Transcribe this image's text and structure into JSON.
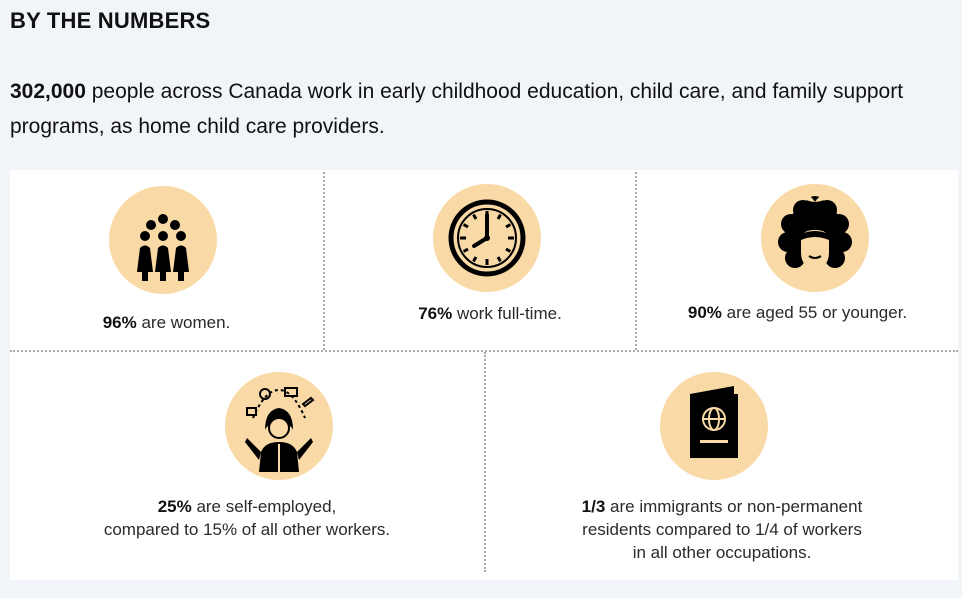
{
  "heading": "BY THE NUMBERS",
  "intro": {
    "number": "302,000",
    "text": " people across Canada work in early childhood education, child care, and family support programs, as home child care providers."
  },
  "stats": [
    {
      "value": "96%",
      "text": " are women.",
      "icon": "women-group-icon"
    },
    {
      "value": "76%",
      "text": " work full-time.",
      "icon": "clock-icon"
    },
    {
      "value": "90%",
      "text": " are aged 55 or younger.",
      "icon": "woman-face-icon"
    },
    {
      "value": "25%",
      "text": " are self-employed,",
      "line2": "compared to 15% of all other workers.",
      "icon": "juggling-worker-icon"
    },
    {
      "value": "1/3",
      "text": " are immigrants or non-permanent",
      "line2": "residents compared to 1/4 of workers",
      "line3": "in all other occupations.",
      "icon": "passport-icon"
    }
  ],
  "colors": {
    "background": "#f1f4f9",
    "panel": "#ffffff",
    "icon_circle": "#f9d9a6",
    "icon": "#000000",
    "divider": "#a9a9a9"
  }
}
